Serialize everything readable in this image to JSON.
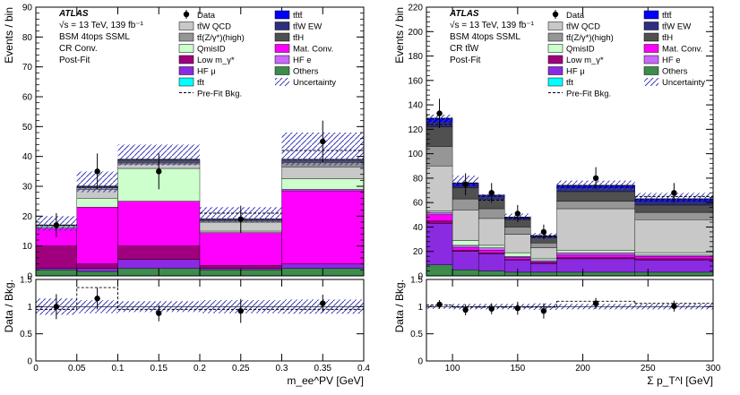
{
  "chart_data": [
    {
      "type": "bar",
      "stacked": true,
      "experiment": "ATLAS",
      "annotations": [
        "√s = 13 TeV, 139 fb⁻¹",
        "BSM 4tops SSML",
        "CR Conv.",
        "Post-Fit"
      ],
      "ylabel": "Events / bin",
      "ratio_ylabel": "Data / Bkg.",
      "xlabel": "m_ee^PV [GeV]",
      "bin_edges": [
        0,
        0.05,
        0.1,
        0.2,
        0.3,
        0.4
      ],
      "xlim": [
        0,
        0.4
      ],
      "ylim": [
        0,
        90
      ],
      "xticks": [
        "0",
        "0.05",
        "0.1",
        "0.15",
        "0.2",
        "0.25",
        "0.3",
        "0.35",
        "0.4"
      ],
      "yticks": [
        "0",
        "10",
        "20",
        "30",
        "40",
        "50",
        "60",
        "70",
        "80",
        "90"
      ],
      "ratio_ylim": [
        0,
        1.5
      ],
      "ratio_yticks": [
        "0",
        "0.5",
        "1",
        "1.5"
      ],
      "series": [
        {
          "name": "Others",
          "color": "#3c8c4c",
          "values": [
            2,
            1.5,
            2.5,
            2,
            2.5
          ]
        },
        {
          "name": "HF μ",
          "color": "#8a2be2",
          "values": [
            0.5,
            1,
            3,
            0.5,
            1.5
          ]
        },
        {
          "name": "Low m_γ*",
          "color": "#a0007d",
          "values": [
            7.5,
            1.5,
            4.5,
            1,
            0
          ]
        },
        {
          "name": "Mat. Conv.",
          "color": "#ff00ff",
          "values": [
            6,
            19,
            15,
            11,
            24.5
          ]
        },
        {
          "name": "HF e",
          "color": "#cc66ff",
          "values": [
            0,
            0,
            0,
            0,
            0.5
          ]
        },
        {
          "name": "QmisID",
          "color": "#ccffcc",
          "values": [
            0.5,
            3,
            11,
            0.5,
            3.5
          ]
        },
        {
          "name": "tt̄W QCD",
          "color": "#c8c8c8",
          "values": [
            0.5,
            3,
            1.5,
            3,
            4
          ]
        },
        {
          "name": "tt̄(Z/γ*)(high)",
          "color": "#969696",
          "values": [
            0,
            0.5,
            0.5,
            0.5,
            1.5
          ]
        },
        {
          "name": "tt̄H",
          "color": "#505050",
          "values": [
            0,
            0.5,
            1,
            0.5,
            1
          ]
        },
        {
          "name": "tt̄W EW",
          "color": "#2e2e7e",
          "values": [
            0,
            0,
            0,
            0,
            0
          ]
        },
        {
          "name": "tt̄t",
          "color": "#00ffff",
          "values": [
            0,
            0,
            0,
            0,
            0
          ]
        },
        {
          "name": "tt̄tt̄",
          "color": "#0000ff",
          "values": [
            0,
            0,
            0,
            0,
            0
          ]
        }
      ],
      "uncertainty_band": {
        "low": [
          15,
          28,
          37,
          18,
          37
        ],
        "high": [
          20,
          35,
          44,
          23,
          48
        ]
      },
      "prefit_bkg": [
        17,
        30,
        39,
        21,
        42
      ],
      "data": {
        "x": [
          0.025,
          0.075,
          0.15,
          0.25,
          0.35
        ],
        "y": [
          17,
          35,
          35,
          19,
          45
        ],
        "err": [
          4,
          6,
          6,
          4.5,
          7
        ]
      },
      "ratio": {
        "y": [
          1.0,
          1.15,
          0.88,
          0.92,
          1.06
        ],
        "err": [
          0.23,
          0.2,
          0.15,
          0.22,
          0.16
        ],
        "unc_half_width": [
          0.15,
          0.12,
          0.1,
          0.12,
          0.13
        ],
        "prefit": [
          0.95,
          1.35,
          0.95,
          0.95,
          0.95
        ]
      }
    },
    {
      "type": "bar",
      "stacked": true,
      "experiment": "ATLAS",
      "annotations": [
        "√s = 13 TeV, 139 fb⁻¹",
        "BSM 4tops SSML",
        "CR tt̄W",
        "Post-Fit"
      ],
      "ylabel": "Events / bin",
      "ratio_ylabel": "Data / Bkg.",
      "xlabel": "Σ p_T^l [GeV]",
      "bin_edges": [
        80,
        100,
        120,
        140,
        160,
        180,
        240,
        300
      ],
      "xlim": [
        80,
        300
      ],
      "ylim": [
        0,
        220
      ],
      "xticks": [
        "100",
        "150",
        "200",
        "250",
        "300"
      ],
      "yticks": [
        "0",
        "20",
        "40",
        "60",
        "80",
        "100",
        "120",
        "140",
        "160",
        "180",
        "200",
        "220"
      ],
      "ratio_ylim": [
        0,
        1.5
      ],
      "ratio_yticks": [
        "0",
        "0.5",
        "1",
        "1.5"
      ],
      "series": [
        {
          "name": "Others",
          "color": "#3c8c4c",
          "values": [
            9,
            5,
            4,
            3,
            3,
            3,
            3
          ]
        },
        {
          "name": "HF μ",
          "color": "#8a2be2",
          "values": [
            34,
            15,
            14,
            10,
            7,
            11,
            10
          ]
        },
        {
          "name": "Low m_γ*",
          "color": "#a0007d",
          "values": [
            2,
            1,
            1,
            0.5,
            0.5,
            1,
            1
          ]
        },
        {
          "name": "Mat. Conv.",
          "color": "#ff00ff",
          "values": [
            5,
            2,
            2,
            1.5,
            1,
            2,
            2
          ]
        },
        {
          "name": "HF e",
          "color": "#cc66ff",
          "values": [
            2,
            2,
            2,
            1,
            1,
            2,
            1
          ]
        },
        {
          "name": "QmisID",
          "color": "#ccffcc",
          "values": [
            1,
            4,
            2,
            3,
            1.5,
            2,
            2
          ]
        },
        {
          "name": "tt̄W QCD",
          "color": "#c8c8c8",
          "values": [
            37,
            25,
            22,
            15,
            9,
            34,
            27
          ]
        },
        {
          "name": "tt̄(Z/γ*)(high)",
          "color": "#969696",
          "values": [
            16,
            9,
            8,
            6,
            4,
            6,
            6
          ]
        },
        {
          "name": "tt̄H",
          "color": "#505050",
          "values": [
            16,
            9,
            8,
            6,
            4,
            8,
            6
          ]
        },
        {
          "name": "tt̄W EW",
          "color": "#2e2e7e",
          "values": [
            4,
            2,
            2,
            1,
            1,
            3,
            3
          ]
        },
        {
          "name": "tt̄t",
          "color": "#00ffff",
          "values": [
            0,
            0,
            0,
            0,
            0,
            0,
            0
          ]
        },
        {
          "name": "tt̄tt̄",
          "color": "#0000ff",
          "values": [
            3,
            2,
            1,
            1,
            0.5,
            2,
            2
          ]
        }
      ],
      "uncertainty_band": {
        "low": [
          124,
          74,
          61,
          46,
          30,
          70,
          61
        ],
        "high": [
          132,
          82,
          67,
          51,
          35,
          78,
          68
        ]
      },
      "prefit_bkg": [
        124,
        76,
        62,
        47,
        33,
        74,
        65
      ],
      "data": {
        "x": [
          90,
          110,
          130,
          150,
          170,
          210,
          270
        ],
        "y": [
          133,
          75,
          68,
          51,
          36,
          80,
          68
        ],
        "err": [
          12,
          9,
          8,
          7,
          6,
          9,
          8
        ]
      },
      "ratio": {
        "y": [
          1.04,
          0.94,
          0.96,
          0.97,
          0.92,
          1.06,
          1.01
        ],
        "err": [
          0.08,
          0.1,
          0.1,
          0.12,
          0.14,
          0.1,
          0.1
        ],
        "unc_half_width": [
          0.04,
          0.05,
          0.05,
          0.05,
          0.06,
          0.05,
          0.05
        ],
        "prefit": [
          1.03,
          0.99,
          0.99,
          0.99,
          0.99,
          1.1,
          1.06
        ]
      }
    }
  ],
  "legend": {
    "col1": [
      "Data",
      "tt̄W QCD",
      "tt̄(Z/γ*)(high)",
      "QmisID",
      "Low m_γ*",
      "HF μ",
      "tt̄t",
      "Pre-Fit Bkg."
    ],
    "col2": [
      "tt̄tt̄",
      "tt̄W EW",
      "tt̄H",
      "Mat. Conv.",
      "HF e",
      "Others",
      "Uncertainty"
    ]
  }
}
